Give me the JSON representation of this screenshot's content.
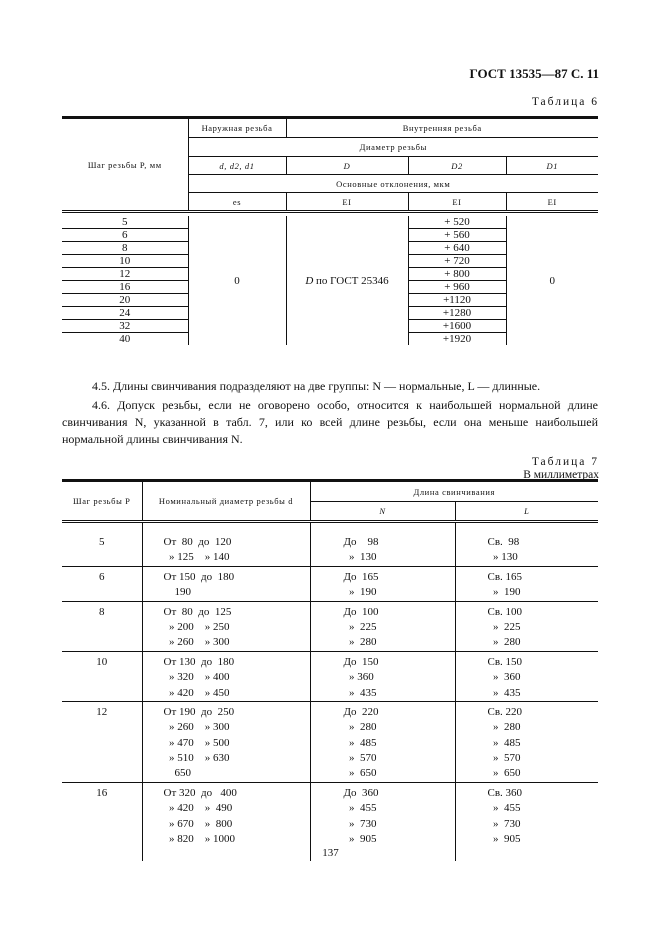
{
  "header": "ГОСТ 13535—87 С. 11",
  "table6": {
    "caption": "Таблица 6",
    "col_pitch": "Шаг резьбы P, мм",
    "external": "Наружная резьба",
    "internal": "Внутренняя резьба",
    "diameter": "Диаметр резьбы",
    "d_ext": "d, d2, d1",
    "D": "D",
    "D2": "D2",
    "D1": "D1",
    "deviations": "Основные отклонения, мкм",
    "es": "es",
    "EI": "EI",
    "pitches": [
      "5",
      "6",
      "8",
      "10",
      "12",
      "16",
      "20",
      "24",
      "32",
      "40"
    ],
    "es_value": "0",
    "D_value": "D по ГОСТ 25346",
    "D2_values": [
      "+ 520",
      "+ 560",
      "+ 640",
      "+ 720",
      "+ 800",
      "+ 960",
      "+1120",
      "+1280",
      "+1600",
      "+1920"
    ],
    "D1_value": "0"
  },
  "paragraphs": [
    "4.5. Длины свинчивания подразделяют на две группы: N — нормальные, L — длинные.",
    "4.6. Допуск резьбы, если не оговорено особо, относится к наибольшей нормальной длине свинчивания N, указанной в табл. 7, или ко всей длине резьбы, если она меньше наибольшей нормальной длины свинчивания N."
  ],
  "table7": {
    "caption": "Таблица 7",
    "units": "В миллиметрах",
    "col_pitch": "Шаг резьбы P",
    "col_diam": "Номинальный диаметр резьбы d",
    "col_len": "Длина свинчивания",
    "N": "N",
    "L": "L",
    "groups": [
      {
        "p": "5",
        "d": [
          "От  80  до  120",
          "  » 125    » 140"
        ],
        "n": [
          "До    98",
          "  »  130"
        ],
        "l": [
          "Св.  98",
          "  » 130"
        ]
      },
      {
        "p": "6",
        "d": [
          "От 150  до  180",
          "    190"
        ],
        "n": [
          "До  165",
          "  »  190"
        ],
        "l": [
          "Св. 165",
          "  »  190"
        ]
      },
      {
        "p": "8",
        "d": [
          "От  80  до  125",
          "  » 200    » 250",
          "  » 260    » 300"
        ],
        "n": [
          "До  100",
          "  »  225",
          "  »  280"
        ],
        "l": [
          "Св. 100",
          "  »  225",
          "  »  280"
        ]
      },
      {
        "p": "10",
        "d": [
          "От 130  до  180",
          "  » 320    » 400",
          "  » 420    » 450"
        ],
        "n": [
          "До  150",
          "  » 360",
          "  »  435"
        ],
        "l": [
          "Св. 150",
          "  »  360",
          "  »  435"
        ]
      },
      {
        "p": "12",
        "d": [
          "От 190  до  250",
          "  » 260    » 300",
          "  » 470    » 500",
          "  » 510    » 630",
          "    650"
        ],
        "n": [
          "До  220",
          "  »  280",
          "  »  485",
          "  »  570",
          "  »  650"
        ],
        "l": [
          "Св. 220",
          "  »  280",
          "  »  485",
          "  »  570",
          "  »  650"
        ]
      },
      {
        "p": "16",
        "d": [
          "От 320  до   400",
          "  » 420    »  490",
          "  » 670    »  800",
          "  » 820    » 1000"
        ],
        "n": [
          "До  360",
          "  »  455",
          "  »  730",
          "  »  905"
        ],
        "l": [
          "Св. 360",
          "  »  455",
          "  »  730",
          "  »  905"
        ]
      }
    ]
  },
  "page_number": "137"
}
